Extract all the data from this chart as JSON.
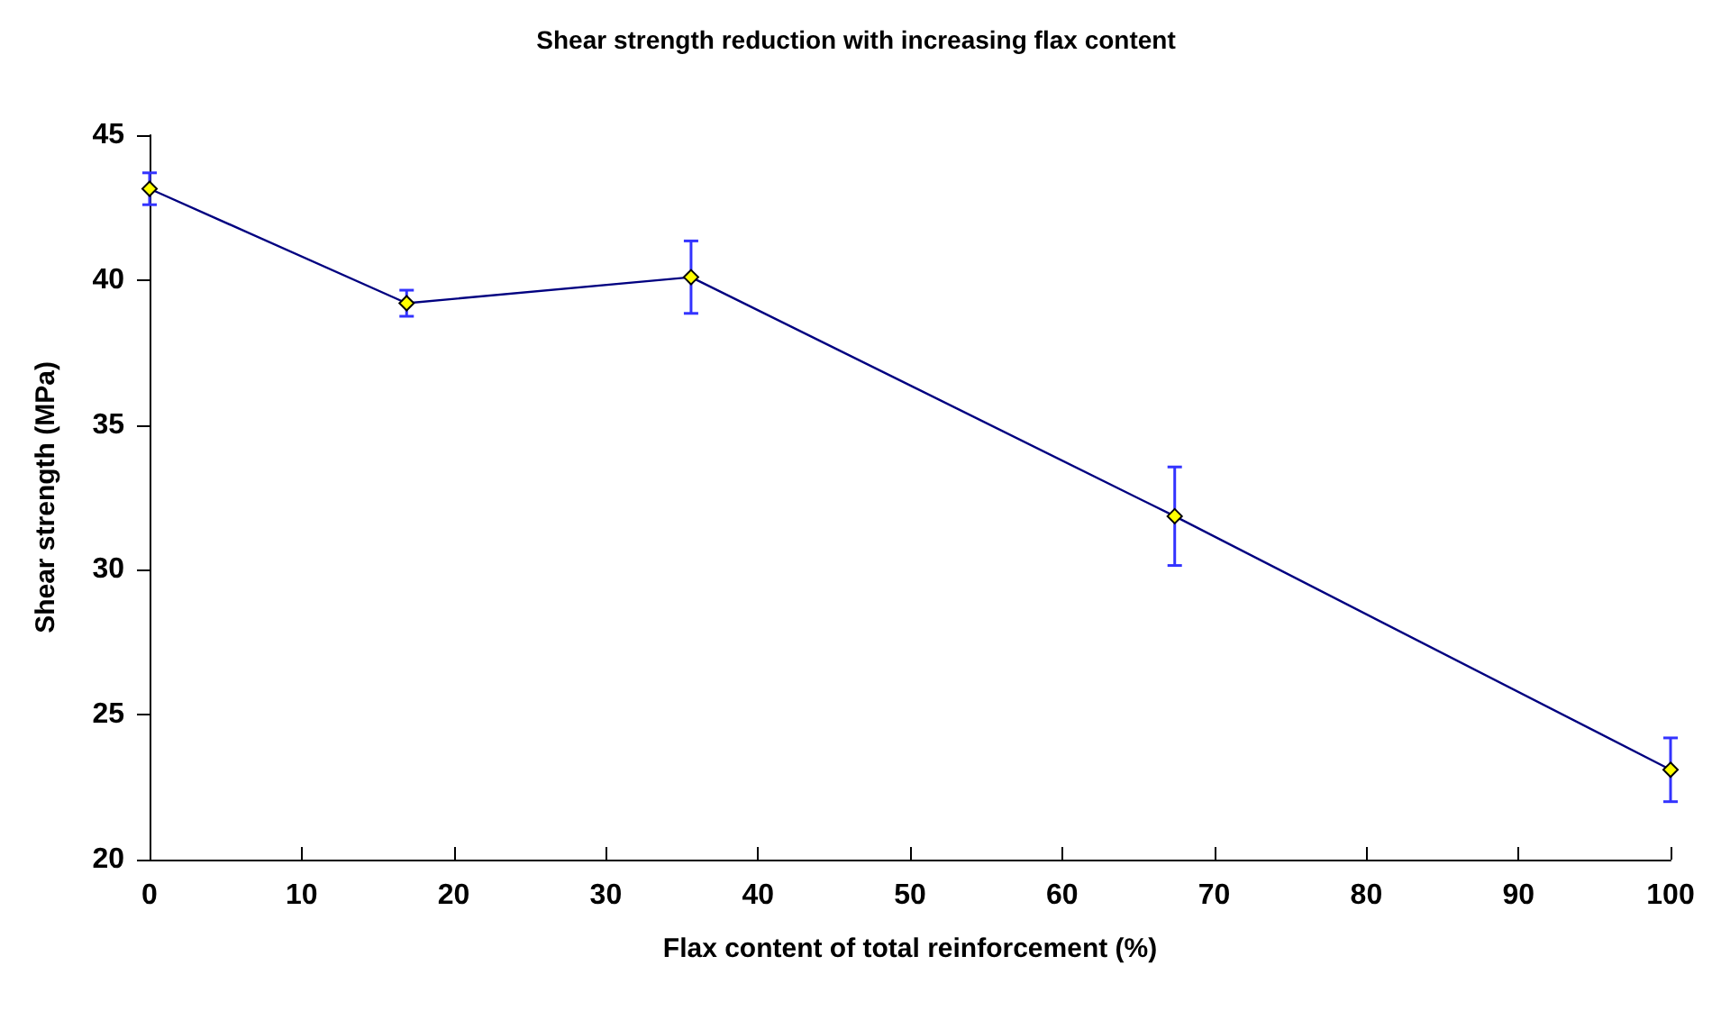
{
  "chart_data": {
    "type": "line",
    "title": "Shear strength reduction with increasing flax content",
    "xlabel": "Flax content of total reinforcement (%)",
    "ylabel": "Shear strength (MPa)",
    "x": [
      0,
      16.9,
      35.6,
      67.4,
      100
    ],
    "series": [
      {
        "color": "#000080",
        "values": [
          43.15,
          39.2,
          40.1,
          31.85,
          23.1
        ],
        "errors": [
          0.55,
          0.45,
          1.25,
          1.7,
          1.1
        ]
      }
    ],
    "xlim": [
      0,
      100
    ],
    "xticks": [
      0,
      10,
      20,
      30,
      40,
      50,
      60,
      70,
      80,
      90,
      100
    ],
    "ylim": [
      20,
      45
    ],
    "yticks": [
      20,
      25,
      30,
      35,
      40,
      45
    ],
    "grid": false,
    "marker": "diamond",
    "line_style": "solid"
  }
}
